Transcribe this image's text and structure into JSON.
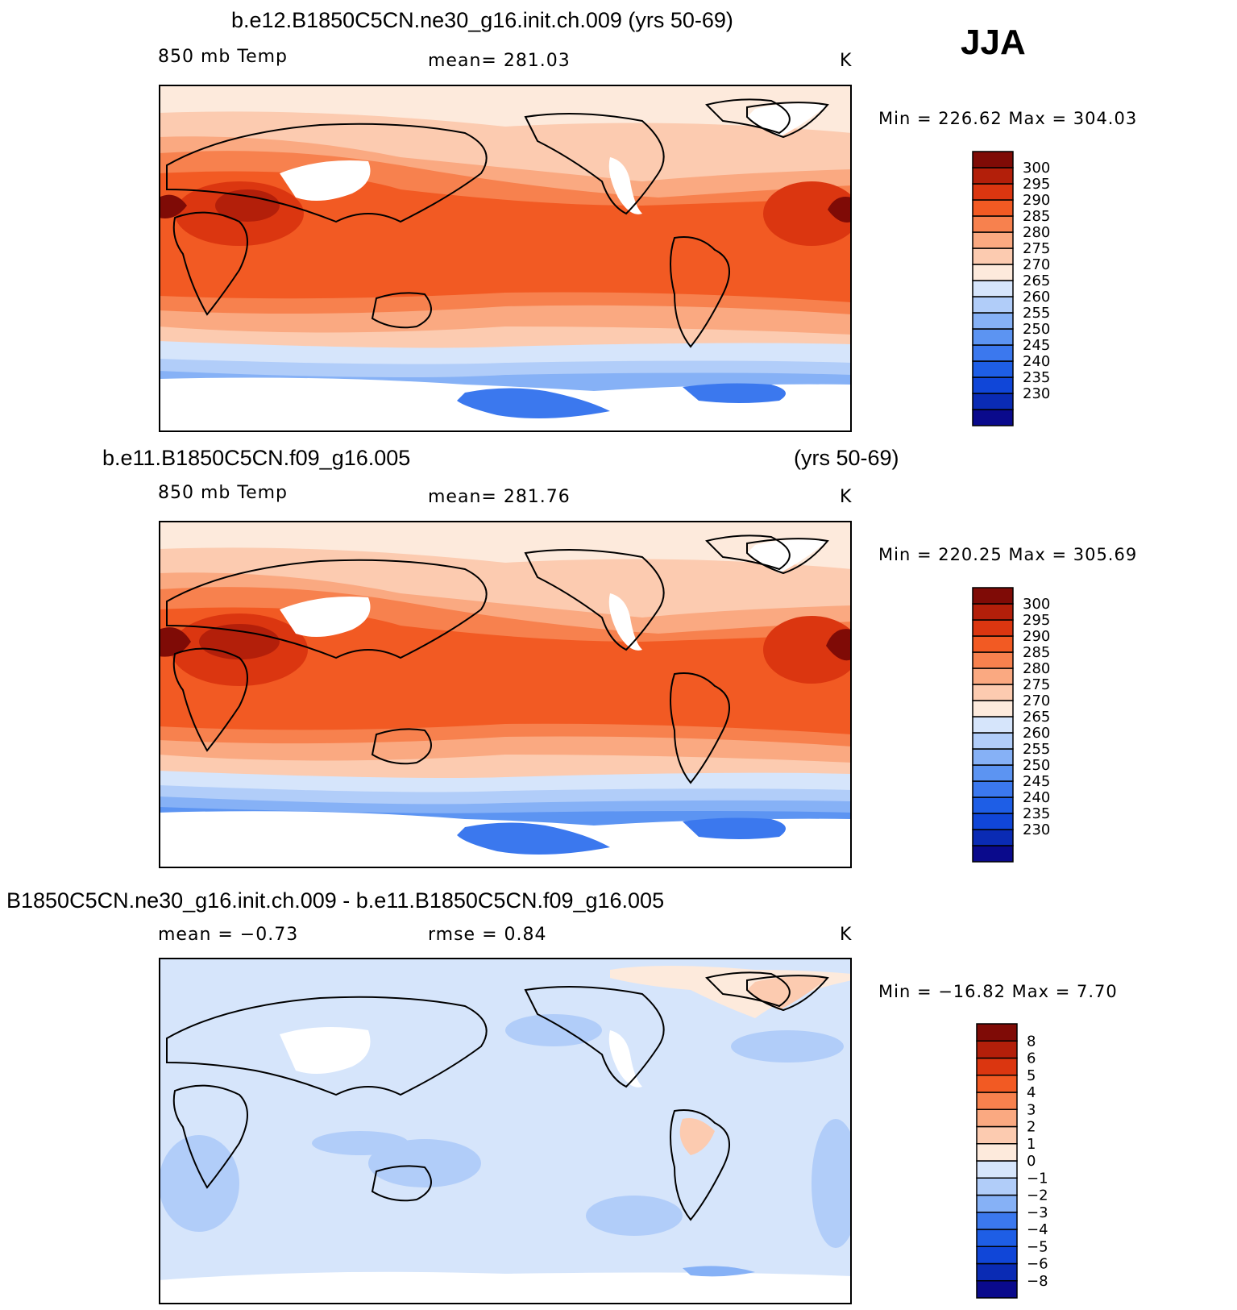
{
  "season": "JJA",
  "colors": {
    "temp_scale": [
      "#0a0a8c",
      "#0a2bb4",
      "#1046d8",
      "#1e5ee6",
      "#3b78ee",
      "#5c94f2",
      "#86b1f6",
      "#b1cdf9",
      "#d6e5fb",
      "#fdeadc",
      "#fccbb0",
      "#faa981",
      "#f7814e",
      "#f25a23",
      "#db3610",
      "#b31f0a",
      "#7f0b06"
    ],
    "diff_scale": [
      "#0a0a8c",
      "#0a2bb4",
      "#1046d8",
      "#1e5ee6",
      "#3b78ee",
      "#86b1f6",
      "#b1cdf9",
      "#d6e5fb",
      "#fdeadc",
      "#fccbb0",
      "#faa981",
      "#f7814e",
      "#f25a23",
      "#db3610",
      "#b31f0a",
      "#7f0b06"
    ]
  },
  "panels": [
    {
      "title": "b.e12.B1850C5CN.ne30_g16.init.ch.009 (yrs 50-69)",
      "variable": "850 mb Temp",
      "stat": "mean=  281.03",
      "units": "K",
      "minmax": "Min  =  226.62  Max  =  304.03",
      "colorbar_labels": [
        "300",
        "295",
        "290",
        "285",
        "280",
        "275",
        "270",
        "265",
        "260",
        "255",
        "250",
        "245",
        "240",
        "235",
        "230"
      ]
    },
    {
      "title_left": "b.e11.B1850C5CN.f09_g16.005",
      "title_right": "(yrs 50-69)",
      "variable": "850 mb Temp",
      "stat": "mean=  281.76",
      "units": "K",
      "minmax": "Min  =  220.25  Max  =  305.69",
      "colorbar_labels": [
        "300",
        "295",
        "290",
        "285",
        "280",
        "275",
        "270",
        "265",
        "260",
        "255",
        "250",
        "245",
        "240",
        "235",
        "230"
      ]
    },
    {
      "title": "B1850C5CN.ne30_g16.init.ch.009 - b.e11.B1850C5CN.f09_g16.005",
      "stat_mean": "mean  =    −0.73",
      "stat_rmse": "rmse  =     0.84",
      "units": "K",
      "minmax": "Min  =  −16.82  Max  =     7.70",
      "colorbar_labels": [
        "8",
        "6",
        "5",
        "4",
        "3",
        "2",
        "1",
        "0",
        "−1",
        "−2",
        "−3",
        "−4",
        "−5",
        "−6",
        "−8"
      ]
    }
  ]
}
